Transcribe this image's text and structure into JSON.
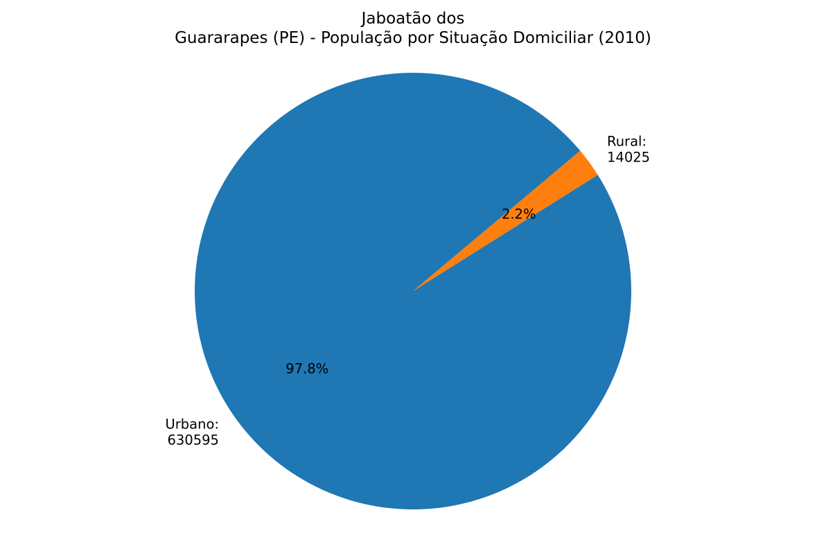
{
  "chart_data": {
    "type": "pie",
    "title_lines": [
      "Jaboatão dos",
      "Guararapes (PE) - População por Situação Domiciliar (2010)"
    ],
    "start_angle_deg": 40,
    "direction": "counterclockwise",
    "slices": [
      {
        "label_lines": [
          "Urbano:",
          "630595"
        ],
        "value": 630595,
        "pct_label": "97.8%",
        "color": "#1f77b4"
      },
      {
        "label_lines": [
          "Rural:",
          "14025"
        ],
        "value": 14025,
        "pct_label": "2.2%",
        "color": "#ff7f0e"
      }
    ]
  }
}
